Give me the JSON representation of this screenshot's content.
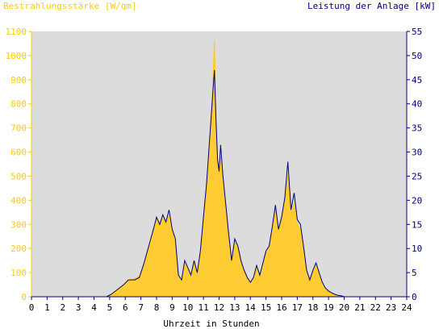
{
  "chart_data": {
    "type": "area",
    "title_left": "Bestrahlungsstärke [W/qm]",
    "title_right": "Leistung der Anlage [kW]",
    "xlabel": "Uhrzeit in Stunden",
    "xlim": [
      0,
      24
    ],
    "ylim_left": [
      0,
      1100
    ],
    "ylim_right": [
      0,
      55
    ],
    "x_ticks": [
      "0",
      "1",
      "2",
      "3",
      "4",
      "5",
      "6",
      "7",
      "8",
      "9",
      "10",
      "11",
      "12",
      "13",
      "14",
      "15",
      "16",
      "17",
      "18",
      "19",
      "20",
      "21",
      "22",
      "23",
      "24"
    ],
    "y_ticks_left": [
      "0",
      "100",
      "200",
      "300",
      "400",
      "500",
      "600",
      "700",
      "800",
      "900",
      "1000",
      "1100"
    ],
    "y_ticks_right": [
      "0",
      "5",
      "10",
      "15",
      "20",
      "25",
      "30",
      "35",
      "40",
      "45",
      "50",
      "55"
    ],
    "colors": {
      "plot_background": "#dcdcdc",
      "irradiance_fill": "#ffcc33",
      "power_line": "#000080",
      "left_axis": "#ffcc00",
      "right_axis": "#000080"
    },
    "series": [
      {
        "name": "Bestrahlungsstärke [W/qm]",
        "x": [
          0,
          4.8,
          5.1,
          5.5,
          5.9,
          6.2,
          6.6,
          6.9,
          7.2,
          7.5,
          7.8,
          8.0,
          8.2,
          8.4,
          8.6,
          8.8,
          9.0,
          9.2,
          9.4,
          9.6,
          9.8,
          10.0,
          10.2,
          10.4,
          10.6,
          10.8,
          11.0,
          11.2,
          11.4,
          11.55,
          11.7,
          11.8,
          11.9,
          12.0,
          12.1,
          12.25,
          12.4,
          12.6,
          12.8,
          13.0,
          13.2,
          13.4,
          13.6,
          13.8,
          14.0,
          14.2,
          14.4,
          14.6,
          14.8,
          15.0,
          15.2,
          15.4,
          15.6,
          15.8,
          16.0,
          16.2,
          16.4,
          16.6,
          16.8,
          17.0,
          17.2,
          17.4,
          17.6,
          17.8,
          18.0,
          18.2,
          18.4,
          18.6,
          18.8,
          19.0,
          19.2,
          19.4,
          19.6,
          19.8,
          20.0,
          20.2,
          24
        ],
        "values": [
          0,
          0,
          10,
          30,
          50,
          70,
          75,
          85,
          140,
          210,
          280,
          320,
          290,
          330,
          300,
          340,
          270,
          220,
          80,
          60,
          140,
          110,
          80,
          140,
          90,
          180,
          310,
          450,
          650,
          800,
          1060,
          720,
          550,
          500,
          580,
          480,
          390,
          260,
          140,
          230,
          200,
          140,
          110,
          80,
          60,
          75,
          120,
          85,
          130,
          180,
          200,
          280,
          360,
          270,
          320,
          390,
          500,
          340,
          390,
          300,
          280,
          200,
          100,
          60,
          100,
          130,
          90,
          50,
          30,
          20,
          12,
          8,
          5,
          3,
          0,
          0,
          0
        ]
      },
      {
        "name": "Leistung der Anlage [kW]",
        "x": [
          0,
          4.8,
          5.1,
          5.5,
          5.9,
          6.2,
          6.6,
          6.9,
          7.2,
          7.5,
          7.8,
          8.0,
          8.2,
          8.4,
          8.6,
          8.8,
          9.0,
          9.2,
          9.4,
          9.6,
          9.8,
          10.0,
          10.2,
          10.4,
          10.6,
          10.8,
          11.0,
          11.2,
          11.4,
          11.55,
          11.7,
          11.8,
          11.9,
          12.0,
          12.1,
          12.25,
          12.4,
          12.6,
          12.8,
          13.0,
          13.2,
          13.4,
          13.6,
          13.8,
          14.0,
          14.2,
          14.4,
          14.6,
          14.8,
          15.0,
          15.2,
          15.4,
          15.6,
          15.8,
          16.0,
          16.2,
          16.4,
          16.6,
          16.8,
          17.0,
          17.2,
          17.4,
          17.6,
          17.8,
          18.0,
          18.2,
          18.4,
          18.6,
          18.8,
          19.0,
          19.2,
          19.4,
          19.6,
          19.8,
          20.0,
          20.2,
          24
        ],
        "values": [
          0,
          0,
          0.5,
          1.5,
          2.5,
          3.5,
          3.5,
          4,
          7,
          10.5,
          14,
          16.5,
          15,
          17,
          15.5,
          18,
          14,
          12,
          4.5,
          3.5,
          7.5,
          6,
          4.5,
          7.5,
          5,
          9.5,
          16.5,
          23.5,
          33,
          40,
          47,
          37,
          28.5,
          26,
          31.5,
          25,
          20,
          13.5,
          7.5,
          12,
          10.5,
          7.5,
          5.5,
          4,
          3,
          4,
          6.5,
          4.5,
          7,
          9.5,
          10.5,
          14.5,
          19,
          14,
          16.5,
          20.5,
          28,
          18,
          21.5,
          16,
          15,
          10.5,
          5.5,
          3.5,
          5.5,
          7,
          5,
          3,
          1.8,
          1.2,
          0.8,
          0.5,
          0.3,
          0.2,
          0,
          0,
          0
        ]
      }
    ]
  }
}
